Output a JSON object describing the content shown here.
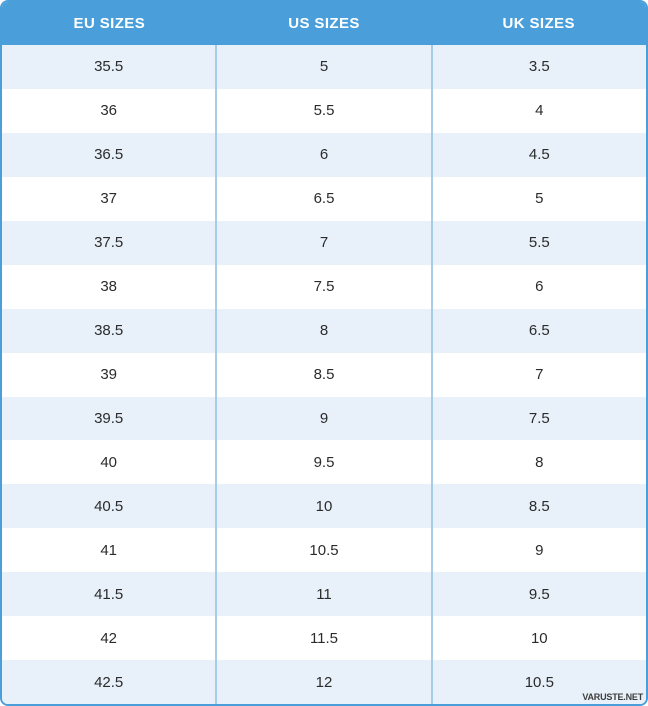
{
  "table": {
    "headers": [
      "EU SIZES",
      "US SIZES",
      "UK SIZES"
    ],
    "rows": [
      [
        "35.5",
        "5",
        "3.5"
      ],
      [
        "36",
        "5.5",
        "4"
      ],
      [
        "36.5",
        "6",
        "4.5"
      ],
      [
        "37",
        "6.5",
        "5"
      ],
      [
        "37.5",
        "7",
        "5.5"
      ],
      [
        "38",
        "7.5",
        "6"
      ],
      [
        "38.5",
        "8",
        "6.5"
      ],
      [
        "39",
        "8.5",
        "7"
      ],
      [
        "39.5",
        "9",
        "7.5"
      ],
      [
        "40",
        "9.5",
        "8"
      ],
      [
        "40.5",
        "10",
        "8.5"
      ],
      [
        "41",
        "10.5",
        "9"
      ],
      [
        "41.5",
        "11",
        "9.5"
      ],
      [
        "42",
        "11.5",
        "10"
      ],
      [
        "42.5",
        "12",
        "10.5"
      ]
    ]
  },
  "watermark": "VARUSTE.NET",
  "colors": {
    "header_blue": "#4A9FDB",
    "border_blue": "#4A9FDB",
    "row_alt": "#E8F1F9",
    "divider_blue": "#A6CCEA",
    "text": "#2B2B2B"
  }
}
